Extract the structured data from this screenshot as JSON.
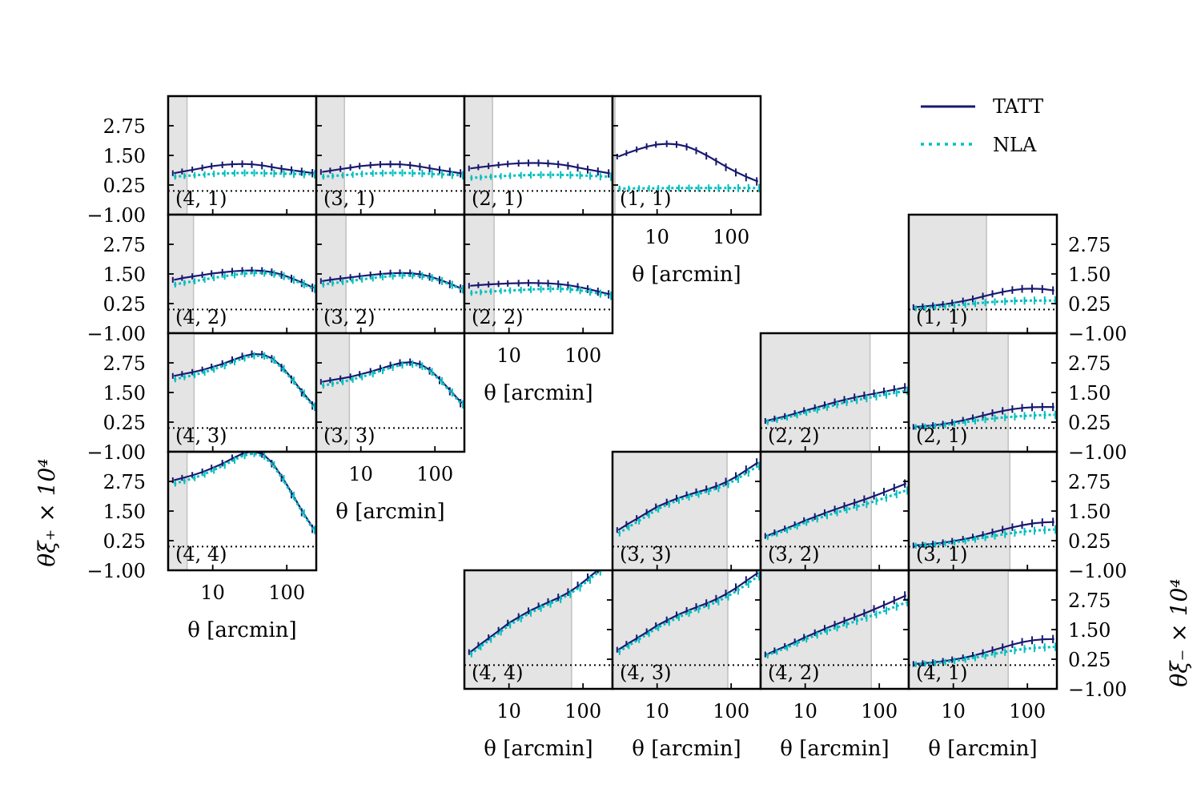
{
  "figure": {
    "left_ylabel": "θξ₊ × 10⁴",
    "right_ylabel": "θξ₋ × 10⁴",
    "xlabel": "θ  [arcmin]"
  },
  "chart_data": {
    "type": "line",
    "x_scale": "log",
    "xlim": [
      2.5,
      250
    ],
    "ylim": [
      -1.0,
      4.0
    ],
    "x_ticks": [
      10,
      100
    ],
    "x_tick_labels": [
      "10",
      "100"
    ],
    "y_ticks": [
      -1.0,
      0.25,
      1.5,
      2.75
    ],
    "y_tick_labels": [
      "−1.00",
      "0.25",
      "1.50",
      "2.75"
    ],
    "reference_line": 0.0,
    "colors": {
      "TATT": "#191970",
      "NLA": "#00bfbf",
      "shade": "#e4e4e4",
      "shade_edge": "#c0c0c0"
    },
    "legend": {
      "position": "top-right",
      "entries": [
        "TATT",
        "NLA"
      ]
    },
    "x": [
      3,
      4,
      5.5,
      7.5,
      10,
      14,
      19,
      26,
      35,
      48,
      65,
      88,
      120,
      165,
      230
    ],
    "panels": [
      {
        "side": "xi_plus",
        "bin": "(4, 1)",
        "cut_max": 4.5,
        "series": [
          {
            "name": "TATT",
            "values": [
              0.75,
              0.82,
              0.9,
              0.98,
              1.05,
              1.1,
              1.13,
              1.14,
              1.12,
              1.07,
              1.0,
              0.93,
              0.87,
              0.81,
              0.75
            ]
          },
          {
            "name": "NLA",
            "values": [
              0.6,
              0.63,
              0.66,
              0.69,
              0.72,
              0.74,
              0.75,
              0.76,
              0.76,
              0.75,
              0.74,
              0.73,
              0.72,
              0.71,
              0.7
            ]
          }
        ]
      },
      {
        "side": "xi_plus",
        "bin": "(3, 1)",
        "cut_max": 6,
        "series": [
          {
            "name": "TATT",
            "values": [
              0.8,
              0.86,
              0.93,
              0.99,
              1.05,
              1.09,
              1.12,
              1.13,
              1.12,
              1.08,
              1.02,
              0.95,
              0.88,
              0.81,
              0.74
            ]
          },
          {
            "name": "NLA",
            "values": [
              0.6,
              0.63,
              0.66,
              0.69,
              0.72,
              0.74,
              0.75,
              0.76,
              0.76,
              0.75,
              0.74,
              0.72,
              0.7,
              0.68,
              0.66
            ]
          }
        ]
      },
      {
        "side": "xi_plus",
        "bin": "(2, 1)",
        "cut_max": 6,
        "series": [
          {
            "name": "TATT",
            "values": [
              0.95,
              1.0,
              1.05,
              1.1,
              1.14,
              1.17,
              1.18,
              1.18,
              1.16,
              1.12,
              1.06,
              0.98,
              0.9,
              0.82,
              0.74
            ]
          },
          {
            "name": "NLA",
            "values": [
              0.55,
              0.57,
              0.6,
              0.62,
              0.64,
              0.66,
              0.67,
              0.68,
              0.68,
              0.68,
              0.67,
              0.66,
              0.64,
              0.62,
              0.6
            ]
          }
        ]
      },
      {
        "side": "xi_plus",
        "bin": "(1, 1)",
        "cut_max": 2.7,
        "series": [
          {
            "name": "TATT",
            "values": [
              1.45,
              1.6,
              1.75,
              1.88,
              1.96,
              1.99,
              1.96,
              1.86,
              1.7,
              1.48,
              1.24,
              1.0,
              0.78,
              0.58,
              0.4
            ]
          },
          {
            "name": "NLA",
            "values": [
              0.1,
              0.1,
              0.11,
              0.11,
              0.11,
              0.12,
              0.12,
              0.12,
              0.12,
              0.12,
              0.12,
              0.12,
              0.12,
              0.12,
              0.12
            ]
          }
        ]
      },
      {
        "side": "xi_plus",
        "bin": "(4, 2)",
        "cut_max": 5.5,
        "series": [
          {
            "name": "TATT",
            "values": [
              1.25,
              1.33,
              1.4,
              1.46,
              1.52,
              1.57,
              1.61,
              1.64,
              1.65,
              1.63,
              1.57,
              1.46,
              1.3,
              1.12,
              0.92
            ]
          },
          {
            "name": "NLA",
            "values": [
              1.05,
              1.12,
              1.19,
              1.26,
              1.33,
              1.4,
              1.46,
              1.51,
              1.54,
              1.54,
              1.5,
              1.4,
              1.25,
              1.07,
              0.87
            ]
          }
        ]
      },
      {
        "side": "xi_plus",
        "bin": "(3, 2)",
        "cut_max": 6.3,
        "series": [
          {
            "name": "TATT",
            "values": [
              1.2,
              1.26,
              1.31,
              1.36,
              1.41,
              1.46,
              1.5,
              1.53,
              1.54,
              1.53,
              1.48,
              1.38,
              1.24,
              1.07,
              0.88
            ]
          },
          {
            "name": "NLA",
            "values": [
              1.05,
              1.1,
              1.16,
              1.21,
              1.27,
              1.32,
              1.37,
              1.41,
              1.44,
              1.44,
              1.41,
              1.33,
              1.2,
              1.04,
              0.85
            ]
          }
        ]
      },
      {
        "side": "xi_plus",
        "bin": "(2, 2)",
        "cut_max": 6.3,
        "series": [
          {
            "name": "TATT",
            "values": [
              1.0,
              1.03,
              1.06,
              1.08,
              1.1,
              1.11,
              1.12,
              1.11,
              1.1,
              1.07,
              1.02,
              0.95,
              0.86,
              0.75,
              0.64
            ]
          },
          {
            "name": "NLA",
            "values": [
              0.7,
              0.73,
              0.76,
              0.78,
              0.8,
              0.82,
              0.84,
              0.86,
              0.87,
              0.87,
              0.85,
              0.81,
              0.75,
              0.67,
              0.58
            ]
          }
        ]
      },
      {
        "side": "xi_plus",
        "bin": "(4, 3)",
        "cut_max": 5.6,
        "series": [
          {
            "name": "TATT",
            "values": [
              2.2,
              2.28,
              2.36,
              2.46,
              2.58,
              2.72,
              2.88,
              3.03,
              3.12,
              3.1,
              2.92,
              2.55,
              2.05,
              1.5,
              0.95
            ]
          },
          {
            "name": "NLA",
            "values": [
              2.05,
              2.14,
              2.23,
              2.34,
              2.47,
              2.62,
              2.79,
              2.95,
              3.05,
              3.04,
              2.87,
              2.5,
              2.0,
              1.45,
              0.9
            ]
          }
        ]
      },
      {
        "side": "xi_plus",
        "bin": "(3, 3)",
        "cut_max": 7,
        "series": [
          {
            "name": "TATT",
            "values": [
              1.95,
              2.02,
              2.09,
              2.17,
              2.27,
              2.39,
              2.52,
              2.65,
              2.75,
              2.78,
              2.68,
              2.42,
              2.02,
              1.55,
              1.05
            ]
          },
          {
            "name": "NLA",
            "values": [
              1.78,
              1.86,
              1.94,
              2.04,
              2.15,
              2.28,
              2.42,
              2.56,
              2.66,
              2.7,
              2.61,
              2.37,
              1.98,
              1.5,
              1.0
            ]
          }
        ]
      },
      {
        "side": "xi_plus",
        "bin": "(4, 4)",
        "cut_max": 4.5,
        "series": [
          {
            "name": "TATT",
            "values": [
              2.8,
              2.9,
              3.02,
              3.16,
              3.32,
              3.52,
              3.74,
              3.94,
              4.02,
              3.9,
              3.5,
              2.9,
              2.2,
              1.45,
              0.75
            ]
          },
          {
            "name": "NLA",
            "values": [
              2.65,
              2.76,
              2.89,
              3.04,
              3.21,
              3.42,
              3.64,
              3.84,
              3.93,
              3.82,
              3.44,
              2.85,
              2.15,
              1.4,
              0.7
            ]
          }
        ]
      },
      {
        "side": "xi_minus",
        "bin": "(1, 1)",
        "cut_max": 28,
        "series": [
          {
            "name": "TATT",
            "values": [
              0.1,
              0.13,
              0.17,
              0.22,
              0.28,
              0.36,
              0.45,
              0.56,
              0.66,
              0.75,
              0.82,
              0.87,
              0.88,
              0.86,
              0.8
            ]
          },
          {
            "name": "NLA",
            "values": [
              0.05,
              0.07,
              0.1,
              0.13,
              0.17,
              0.21,
              0.25,
              0.29,
              0.32,
              0.34,
              0.36,
              0.37,
              0.38,
              0.38,
              0.38
            ]
          }
        ]
      },
      {
        "side": "xi_minus",
        "bin": "(2, 2)",
        "cut_max": 75,
        "series": [
          {
            "name": "TATT",
            "values": [
              0.3,
              0.4,
              0.5,
              0.62,
              0.74,
              0.86,
              0.98,
              1.1,
              1.2,
              1.3,
              1.38,
              1.46,
              1.54,
              1.63,
              1.72
            ]
          },
          {
            "name": "NLA",
            "values": [
              0.25,
              0.34,
              0.44,
              0.54,
              0.65,
              0.76,
              0.87,
              0.98,
              1.08,
              1.17,
              1.25,
              1.33,
              1.41,
              1.49,
              1.57
            ]
          }
        ]
      },
      {
        "side": "xi_minus",
        "bin": "(2, 1)",
        "cut_max": 55,
        "series": [
          {
            "name": "TATT",
            "values": [
              0.05,
              0.08,
              0.12,
              0.17,
              0.24,
              0.33,
              0.43,
              0.54,
              0.64,
              0.73,
              0.8,
              0.85,
              0.88,
              0.89,
              0.89
            ]
          },
          {
            "name": "NLA",
            "values": [
              0.04,
              0.06,
              0.09,
              0.13,
              0.18,
              0.24,
              0.3,
              0.36,
              0.41,
              0.45,
              0.48,
              0.51,
              0.53,
              0.55,
              0.56
            ]
          }
        ]
      },
      {
        "side": "xi_minus",
        "bin": "(3, 3)",
        "cut_max": 88,
        "series": [
          {
            "name": "TATT",
            "values": [
              0.7,
              0.95,
              1.2,
              1.45,
              1.68,
              1.88,
              2.04,
              2.18,
              2.3,
              2.42,
              2.56,
              2.74,
              2.97,
              3.25,
              3.55
            ]
          },
          {
            "name": "NLA",
            "values": [
              0.55,
              0.8,
              1.06,
              1.32,
              1.57,
              1.78,
              1.95,
              2.09,
              2.21,
              2.33,
              2.46,
              2.63,
              2.85,
              3.12,
              3.4
            ]
          }
        ]
      },
      {
        "side": "xi_minus",
        "bin": "(3, 2)",
        "cut_max": 78,
        "series": [
          {
            "name": "TATT",
            "values": [
              0.45,
              0.6,
              0.76,
              0.93,
              1.1,
              1.27,
              1.43,
              1.58,
              1.72,
              1.86,
              2.0,
              2.15,
              2.31,
              2.48,
              2.66
            ]
          },
          {
            "name": "NLA",
            "values": [
              0.4,
              0.54,
              0.69,
              0.85,
              1.01,
              1.16,
              1.3,
              1.43,
              1.55,
              1.67,
              1.79,
              1.92,
              2.06,
              2.21,
              2.37
            ]
          }
        ]
      },
      {
        "side": "xi_minus",
        "bin": "(3, 1)",
        "cut_max": 58,
        "series": [
          {
            "name": "TATT",
            "values": [
              0.05,
              0.08,
              0.12,
              0.17,
              0.23,
              0.31,
              0.4,
              0.5,
              0.61,
              0.72,
              0.82,
              0.91,
              0.98,
              1.02,
              1.04
            ]
          },
          {
            "name": "NLA",
            "values": [
              0.04,
              0.06,
              0.09,
              0.13,
              0.18,
              0.24,
              0.31,
              0.38,
              0.45,
              0.52,
              0.58,
              0.63,
              0.67,
              0.7,
              0.72
            ]
          }
        ]
      },
      {
        "side": "xi_minus",
        "bin": "(4, 4)",
        "cut_max": 70,
        "series": [
          {
            "name": "TATT",
            "values": [
              0.55,
              0.85,
              1.17,
              1.48,
              1.78,
              2.05,
              2.29,
              2.49,
              2.67,
              2.86,
              3.08,
              3.36,
              3.7,
              4.05,
              4.35
            ]
          },
          {
            "name": "NLA",
            "values": [
              0.45,
              0.75,
              1.07,
              1.38,
              1.68,
              1.95,
              2.19,
              2.4,
              2.58,
              2.77,
              2.99,
              3.27,
              3.6,
              3.95,
              4.25
            ]
          }
        ]
      },
      {
        "side": "xi_minus",
        "bin": "(4, 3)",
        "cut_max": 90,
        "series": [
          {
            "name": "TATT",
            "values": [
              0.65,
              0.9,
              1.16,
              1.42,
              1.67,
              1.91,
              2.12,
              2.3,
              2.46,
              2.62,
              2.8,
              3.02,
              3.28,
              3.58,
              3.9
            ]
          },
          {
            "name": "NLA",
            "values": [
              0.55,
              0.8,
              1.06,
              1.32,
              1.57,
              1.8,
              2.01,
              2.19,
              2.35,
              2.51,
              2.68,
              2.89,
              3.14,
              3.43,
              3.75
            ]
          }
        ]
      },
      {
        "side": "xi_minus",
        "bin": "(4, 2)",
        "cut_max": 78,
        "series": [
          {
            "name": "TATT",
            "values": [
              0.45,
              0.62,
              0.8,
              0.99,
              1.18,
              1.37,
              1.55,
              1.72,
              1.88,
              2.04,
              2.2,
              2.37,
              2.55,
              2.74,
              2.94
            ]
          },
          {
            "name": "NLA",
            "values": [
              0.4,
              0.56,
              0.73,
              0.91,
              1.09,
              1.26,
              1.42,
              1.57,
              1.71,
              1.85,
              1.99,
              2.14,
              2.3,
              2.47,
              2.65
            ]
          }
        ]
      },
      {
        "side": "xi_minus",
        "bin": "(4, 1)",
        "cut_max": 55,
        "series": [
          {
            "name": "TATT",
            "values": [
              0.05,
              0.08,
              0.12,
              0.17,
              0.23,
              0.31,
              0.41,
              0.52,
              0.64,
              0.76,
              0.88,
              0.98,
              1.05,
              1.09,
              1.1
            ]
          },
          {
            "name": "NLA",
            "values": [
              0.04,
              0.06,
              0.09,
              0.13,
              0.18,
              0.24,
              0.31,
              0.39,
              0.47,
              0.55,
              0.62,
              0.68,
              0.72,
              0.75,
              0.77
            ]
          }
        ]
      }
    ]
  }
}
